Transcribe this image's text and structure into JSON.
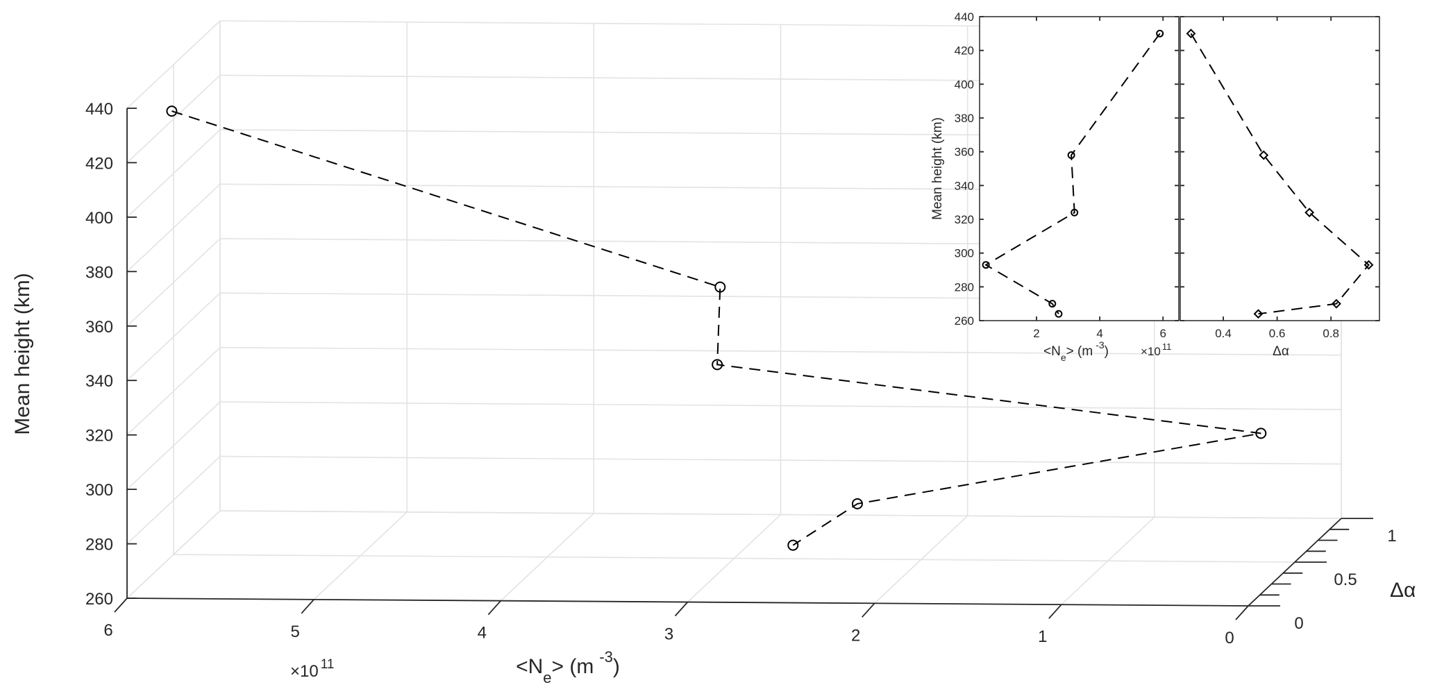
{
  "chart_data": [
    {
      "type": "line3d",
      "x_axis": {
        "label_base": "<N",
        "label_sub": "e",
        "label_mid": "> (m",
        "label_sup": "-3",
        "label_end": ")",
        "ticks": [
          "6",
          "5",
          "4",
          "3",
          "2",
          "1",
          "0"
        ],
        "multiplier_base": "×10",
        "multiplier_exp": "11",
        "range": [
          0,
          6
        ]
      },
      "y_axis": {
        "label": "Δα",
        "ticks": [
          "0",
          "0.5",
          "1"
        ],
        "range": [
          0,
          1
        ]
      },
      "z_axis": {
        "label": "Mean height (km)",
        "ticks": [
          "260",
          "280",
          "300",
          "320",
          "340",
          "360",
          "380",
          "400",
          "420",
          "440"
        ],
        "range": [
          260,
          440
        ]
      },
      "grid": true,
      "series": [
        {
          "points": [
            {
              "ne": 5.9,
              "da": 0.28,
              "h": 430
            },
            {
              "ne": 3.1,
              "da": 0.55,
              "h": 358
            },
            {
              "ne": 3.2,
              "da": 0.72,
              "h": 324
            },
            {
              "ne": 0.4,
              "da": 0.94,
              "h": 293
            },
            {
              "ne": 2.5,
              "da": 0.82,
              "h": 270
            },
            {
              "ne": 2.7,
              "da": 0.53,
              "h": 264
            }
          ]
        }
      ]
    },
    {
      "type": "line",
      "x_axis": {
        "label_base": "<N",
        "label_sub": "e",
        "label_mid": "> (m",
        "label_sup": "-3",
        "label_end": ")",
        "ticks": [
          "2",
          "4",
          "6"
        ],
        "multiplier_base": "×10",
        "multiplier_exp": "11",
        "range": [
          0.2,
          6.5
        ]
      },
      "y_axis": {
        "label": "Mean height (km)",
        "ticks": [
          "260",
          "280",
          "300",
          "320",
          "340",
          "360",
          "380",
          "400",
          "420",
          "440"
        ],
        "range": [
          260,
          440
        ]
      },
      "series": [
        {
          "x": [
            5.9,
            3.1,
            3.2,
            0.4,
            2.5,
            2.7
          ],
          "y": [
            430,
            358,
            324,
            293,
            270,
            264
          ]
        }
      ]
    },
    {
      "type": "line",
      "x_axis": {
        "label": "Δα",
        "ticks": [
          "0.4",
          "0.6",
          "0.8"
        ],
        "range": [
          0.24,
          0.98
        ]
      },
      "y_axis": {
        "range": [
          260,
          440
        ]
      },
      "series": [
        {
          "x": [
            0.28,
            0.55,
            0.72,
            0.94,
            0.82,
            0.53
          ],
          "y": [
            430,
            358,
            324,
            293,
            270,
            264
          ]
        }
      ]
    }
  ]
}
